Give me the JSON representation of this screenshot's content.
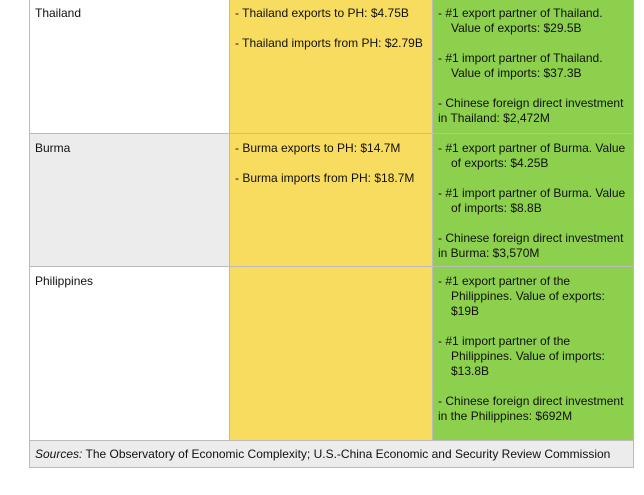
{
  "table": {
    "rows": [
      {
        "country": "Thailand",
        "ph_trade": [
          "-  Thailand exports to PH: $4.75B",
          "-  Thailand imports from PH: $2.79B"
        ],
        "china": [
          "-  #1 export partner of Thailand. Value of exports: $29.5B",
          "-  #1 import partner of Thailand. Value of imports: $37.3B",
          "- Chinese foreign direct investment in Thailand: $2,472M"
        ]
      },
      {
        "country": "Burma",
        "ph_trade": [
          "-  Burma exports to PH: $14.7M",
          "-  Burma imports from PH: $18.7M"
        ],
        "china": [
          "-  #1 export partner of Burma. Value of exports: $4.25B",
          "-  #1 import partner of Burma. Value of imports: $8.8B",
          "- Chinese foreign direct investment in Burma: $3,570M"
        ]
      },
      {
        "country": "Philippines",
        "ph_trade": [],
        "china": [
          "-  #1 export partner of the Philippines. Value of exports: $19B",
          "-  #1 import partner of the Philippines. Value of imports: $13.8B",
          "- Chinese foreign direct investment in the Philippines: $692M"
        ]
      }
    ],
    "sources": {
      "label": "Sources:",
      "text": "The Observatory of Economic Complexity; U.S.-China Economic and Security Review Commission"
    }
  }
}
